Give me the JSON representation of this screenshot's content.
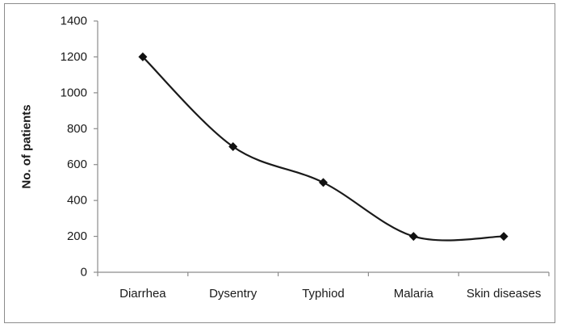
{
  "chart_data": {
    "type": "line",
    "categories": [
      "Diarrhea",
      "Dysentry",
      "Typhiod",
      "Malaria",
      "Skin diseases"
    ],
    "series": [
      {
        "values": [
          1200,
          700,
          500,
          200,
          200
        ]
      }
    ],
    "xlabel": "",
    "ylabel": "No. of patients",
    "ylim": [
      0,
      1400
    ],
    "yticks": [
      "0",
      "200",
      "400",
      "600",
      "800",
      "1000",
      "1200",
      "1400"
    ],
    "grid": false,
    "legend": "none",
    "line_style": "smooth",
    "marker": "diamond",
    "colors": {
      "line": "#1a1a1a",
      "marker": "#111111",
      "axis": "#8c8c8c",
      "frame": "#8c8c8c"
    }
  }
}
